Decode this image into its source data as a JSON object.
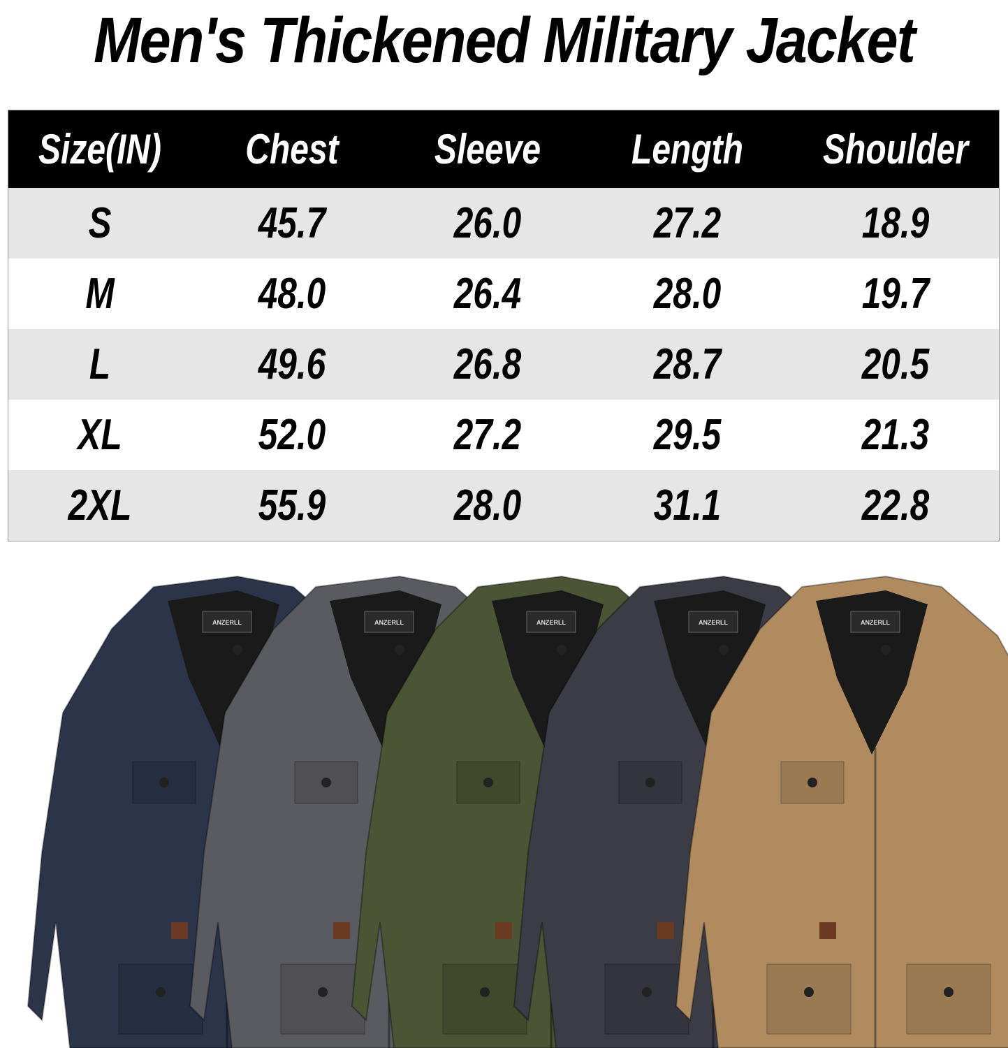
{
  "title": "Men's Thickened Military Jacket",
  "size_chart": {
    "headers": [
      "Size(IN)",
      "Chest",
      "Sleeve",
      "Length",
      "Shoulder"
    ],
    "rows": [
      [
        "S",
        "45.7",
        "26.0",
        "27.2",
        "18.9"
      ],
      [
        "M",
        "48.0",
        "26.4",
        "28.0",
        "19.7"
      ],
      [
        "L",
        "49.6",
        "26.8",
        "28.7",
        "20.5"
      ],
      [
        "XL",
        "52.0",
        "27.2",
        "29.5",
        "21.3"
      ],
      [
        "2XL",
        "55.9",
        "28.0",
        "31.1",
        "22.8"
      ]
    ]
  },
  "jackets": {
    "colors": [
      "#2b3449",
      "#5a5b60",
      "#4b5434",
      "#3b3c46",
      "#b08b5f"
    ],
    "label_text": "ANZERLL"
  }
}
